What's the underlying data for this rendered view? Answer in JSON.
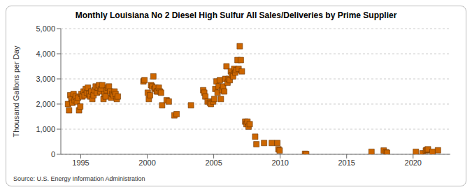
{
  "chart_data": {
    "type": "scatter",
    "title": "Monthly Louisiana No 2 Diesel High Sulfur All Sales/Deliveries by Prime Supplier",
    "y_label": "Thousand Gallons per Day",
    "source": "Source: U.S. Energy Information Administration",
    "x": [
      1994.04,
      1994.12,
      1994.21,
      1994.29,
      1994.37,
      1994.46,
      1994.54,
      1994.62,
      1994.71,
      1994.79,
      1994.87,
      1994.96,
      1995.04,
      1995.12,
      1995.21,
      1995.29,
      1995.37,
      1995.46,
      1995.54,
      1995.62,
      1995.71,
      1995.79,
      1995.87,
      1995.96,
      1996.04,
      1996.12,
      1996.21,
      1996.29,
      1996.37,
      1996.46,
      1996.54,
      1996.62,
      1996.71,
      1996.79,
      1996.87,
      1996.96,
      1997.04,
      1997.12,
      1997.21,
      1997.29,
      1997.37,
      1997.46,
      1997.54,
      1997.62,
      1997.71,
      1997.79,
      1999.71,
      1999.79,
      2000.04,
      2000.12,
      2000.21,
      2000.29,
      2000.37,
      2000.46,
      2000.54,
      2000.62,
      2000.71,
      2000.79,
      2000.87,
      2000.96,
      2001.04,
      2001.12,
      2001.46,
      2001.62,
      2002.04,
      2002.21,
      2003.29,
      2004.21,
      2004.29,
      2004.37,
      2004.54,
      2004.71,
      2004.79,
      2004.96,
      2005.04,
      2005.12,
      2005.21,
      2005.29,
      2005.37,
      2005.46,
      2005.54,
      2005.62,
      2005.71,
      2005.79,
      2005.87,
      2005.96,
      2006.04,
      2006.12,
      2006.21,
      2006.29,
      2006.37,
      2006.46,
      2006.54,
      2006.62,
      2006.71,
      2006.79,
      2006.87,
      2006.96,
      2007.04,
      2007.12,
      2007.37,
      2007.46,
      2007.54,
      2007.62,
      2007.71,
      2008.12,
      2008.21,
      2008.79,
      2009.37,
      2009.79,
      2009.87,
      2009.96,
      2011.87,
      2011.96,
      2016.87,
      2017.79,
      2017.96,
      2018.04,
      2020.21,
      2020.71,
      2020.96,
      2021.04,
      2021.12,
      2021.46,
      2021.87
    ],
    "values": [
      2000,
      1750,
      2350,
      2200,
      2050,
      2400,
      2150,
      2300,
      2100,
      2250,
      1750,
      1900,
      2400,
      2300,
      2500,
      2350,
      2600,
      2450,
      2650,
      2400,
      2300,
      2500,
      2200,
      2350,
      2550,
      2700,
      2450,
      2650,
      2750,
      2500,
      2600,
      2750,
      2200,
      2400,
      2300,
      2550,
      2650,
      2700,
      2500,
      2250,
      2400,
      2350,
      2500,
      2400,
      2200,
      2300,
      2900,
      2950,
      2450,
      2200,
      2350,
      2750,
      2700,
      3100,
      2600,
      2650,
      2500,
      2500,
      2650,
      2500,
      2450,
      1950,
      2150,
      2100,
      1550,
      1600,
      1950,
      2550,
      2450,
      2300,
      2100,
      2050,
      2000,
      2100,
      2200,
      2600,
      2900,
      2450,
      2700,
      2950,
      2200,
      2550,
      2700,
      2500,
      3000,
      3500,
      2850,
      3000,
      2950,
      3300,
      3150,
      3100,
      3400,
      3250,
      3350,
      3750,
      3400,
      4300,
      3750,
      3300,
      1300,
      1200,
      1300,
      1100,
      1200,
      700,
      400,
      450,
      450,
      450,
      200,
      150,
      20,
      10,
      100,
      150,
      80,
      60,
      100,
      40,
      150,
      180,
      200,
      100,
      160
    ],
    "color": "#cc6600",
    "marker": "square",
    "xlim": [
      1993.5,
      2022.8
    ],
    "xticks": [
      1995,
      2000,
      2005,
      2010,
      2015,
      2020
    ],
    "ylim": [
      0,
      5000
    ],
    "yticks": [
      0,
      {
        "value": 1000,
        "label": "1,000"
      },
      {
        "value": 2000,
        "label": "2,000"
      },
      {
        "value": 3000,
        "label": "3,000"
      },
      {
        "value": 4000,
        "label": "4,000"
      },
      {
        "value": 5000,
        "label": "5,000"
      }
    ],
    "grid": true
  }
}
